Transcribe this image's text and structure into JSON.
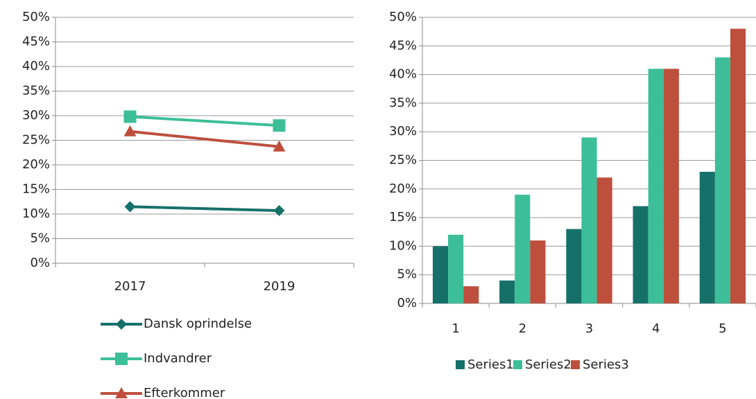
{
  "chart_data": [
    {
      "type": "line",
      "categories": [
        "2017",
        "2019"
      ],
      "ylim": [
        0,
        50
      ],
      "yticks": [
        {
          "value": 0,
          "label": "0%"
        },
        {
          "value": 5,
          "label": "5%"
        },
        {
          "value": 10,
          "label": "10%"
        },
        {
          "value": 15,
          "label": "15%"
        },
        {
          "value": 20,
          "label": "20%"
        },
        {
          "value": 25,
          "label": "25%"
        },
        {
          "value": 30,
          "label": "30%"
        },
        {
          "value": 35,
          "label": "35%"
        },
        {
          "value": 40,
          "label": "40%"
        },
        {
          "value": 45,
          "label": "45%"
        },
        {
          "value": 50,
          "label": "50%"
        }
      ],
      "grid": true,
      "legend": "bottom",
      "series": [
        {
          "name": "Dansk oprindelse",
          "color": "#16706a",
          "marker": "diamond",
          "values": [
            11.5,
            10.7
          ]
        },
        {
          "name": "Indvandrer",
          "color": "#3cbf99",
          "marker": "square",
          "values": [
            29.8,
            28.0
          ]
        },
        {
          "name": "Efterkommer",
          "color": "#bd4f3c",
          "marker": "triangle",
          "values": [
            26.8,
            23.7
          ]
        }
      ]
    },
    {
      "type": "bar",
      "categories": [
        "1",
        "2",
        "3",
        "4",
        "5"
      ],
      "ylim": [
        0,
        50
      ],
      "yticks": [
        {
          "value": 0,
          "label": "0%"
        },
        {
          "value": 5,
          "label": "5%"
        },
        {
          "value": 10,
          "label": "10%"
        },
        {
          "value": 15,
          "label": "15%"
        },
        {
          "value": 20,
          "label": "20%"
        },
        {
          "value": 25,
          "label": "25%"
        },
        {
          "value": 30,
          "label": "30%"
        },
        {
          "value": 35,
          "label": "35%"
        },
        {
          "value": 40,
          "label": "40%"
        },
        {
          "value": 45,
          "label": "45%"
        },
        {
          "value": 50,
          "label": "50%"
        }
      ],
      "grid": true,
      "legend": "bottom",
      "series": [
        {
          "name": "Series1",
          "color": "#16706a",
          "values": [
            10,
            4,
            13,
            17,
            23
          ]
        },
        {
          "name": "Series2",
          "color": "#3cbf99",
          "values": [
            12,
            19,
            29,
            41,
            43
          ]
        },
        {
          "name": "Series3",
          "color": "#bd4f3c",
          "values": [
            3,
            11,
            22,
            41,
            48
          ]
        }
      ]
    }
  ]
}
